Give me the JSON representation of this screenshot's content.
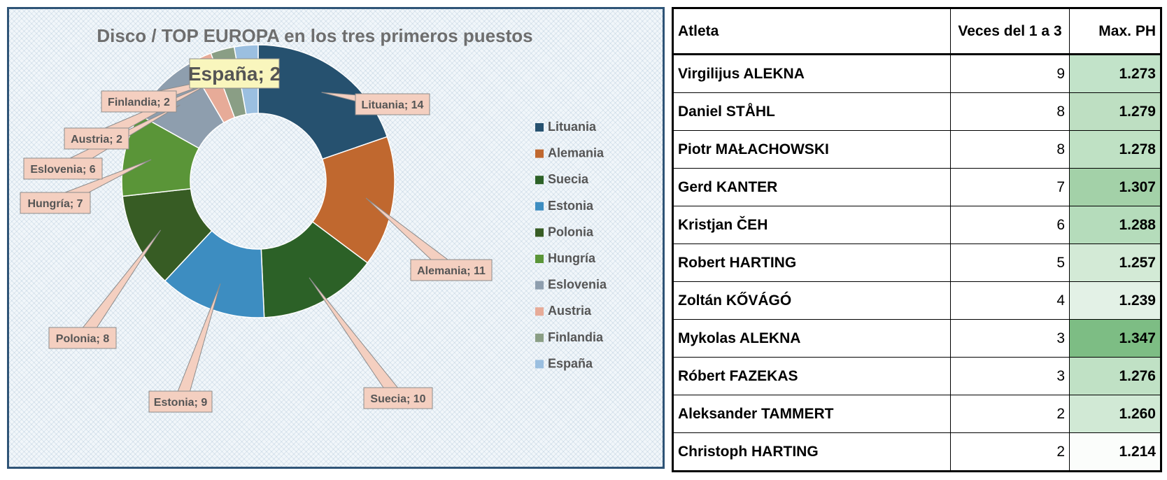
{
  "chart_data": {
    "type": "pie",
    "variant": "donut",
    "title": "Disco  / TOP   EUROPA en los tres primeros puestos",
    "slices": [
      {
        "name": "Lituania",
        "value": 14,
        "label": "Lituania; 14",
        "color": "#26516f"
      },
      {
        "name": "Alemania",
        "value": 11,
        "label": "Alemania; 11",
        "color": "#c0682f"
      },
      {
        "name": "Suecia",
        "value": 10,
        "label": "Suecia; 10",
        "color": "#2c6127"
      },
      {
        "name": "Estonia",
        "value": 9,
        "label": "Estonia; 9",
        "color": "#3d8dc1"
      },
      {
        "name": "Polonia",
        "value": 8,
        "label": "Polonia; 8",
        "color": "#375c24"
      },
      {
        "name": "Hungría",
        "value": 7,
        "label": "Hungría; 7",
        "color": "#5a9538"
      },
      {
        "name": "Eslovenia",
        "value": 6,
        "label": "Eslovenia; 6",
        "color": "#8e9eae"
      },
      {
        "name": "Austria",
        "value": 2,
        "label": "Austria; 2",
        "color": "#e7ab98"
      },
      {
        "name": "Finlandia",
        "value": 2,
        "label": "Finlandia; 2",
        "color": "#8a9e85"
      },
      {
        "name": "España",
        "value": 2,
        "label": "España; 2",
        "color": "#9bbfe0"
      }
    ],
    "legend_position": "right",
    "label_box_color": "#f4cfc0",
    "highlight_label_box_color": "#f9f6bd"
  },
  "table": {
    "headers": {
      "name": "Atleta",
      "times": "Veces del 1 a 3",
      "max": "Max. PH"
    },
    "rows": [
      {
        "name": "Virgilijus ALEKNA",
        "times": "9",
        "max": "1.273",
        "shade": "#c2e3c9"
      },
      {
        "name": "Daniel STÅHL",
        "times": "8",
        "max": "1.279",
        "shade": "#bedfc2"
      },
      {
        "name": "Piotr MAŁACHOWSKI",
        "times": "8",
        "max": "1.278",
        "shade": "#bfe1c4"
      },
      {
        "name": "Gerd KANTER",
        "times": "7",
        "max": "1.307",
        "shade": "#a3d1a8"
      },
      {
        "name": "Kristjan ČEH",
        "times": "6",
        "max": "1.288",
        "shade": "#b5dcbb"
      },
      {
        "name": "Robert HARTING",
        "times": "5",
        "max": "1.257",
        "shade": "#d3ead6"
      },
      {
        "name": "Zoltán KŐVÁGÓ",
        "times": "4",
        "max": "1.239",
        "shade": "#e3f1e6"
      },
      {
        "name": "Mykolas ALEKNA",
        "times": "3",
        "max": "1.347",
        "shade": "#7dbd84"
      },
      {
        "name": "Róbert FAZEKAS",
        "times": "3",
        "max": "1.276",
        "shade": "#c0e1c5"
      },
      {
        "name": "Aleksander TAMMERT",
        "times": "2",
        "max": "1.260",
        "shade": "#d1e9d5"
      },
      {
        "name": "Christoph HARTING",
        "times": "2",
        "max": "1.214",
        "shade": "#fbfdfb"
      }
    ]
  }
}
